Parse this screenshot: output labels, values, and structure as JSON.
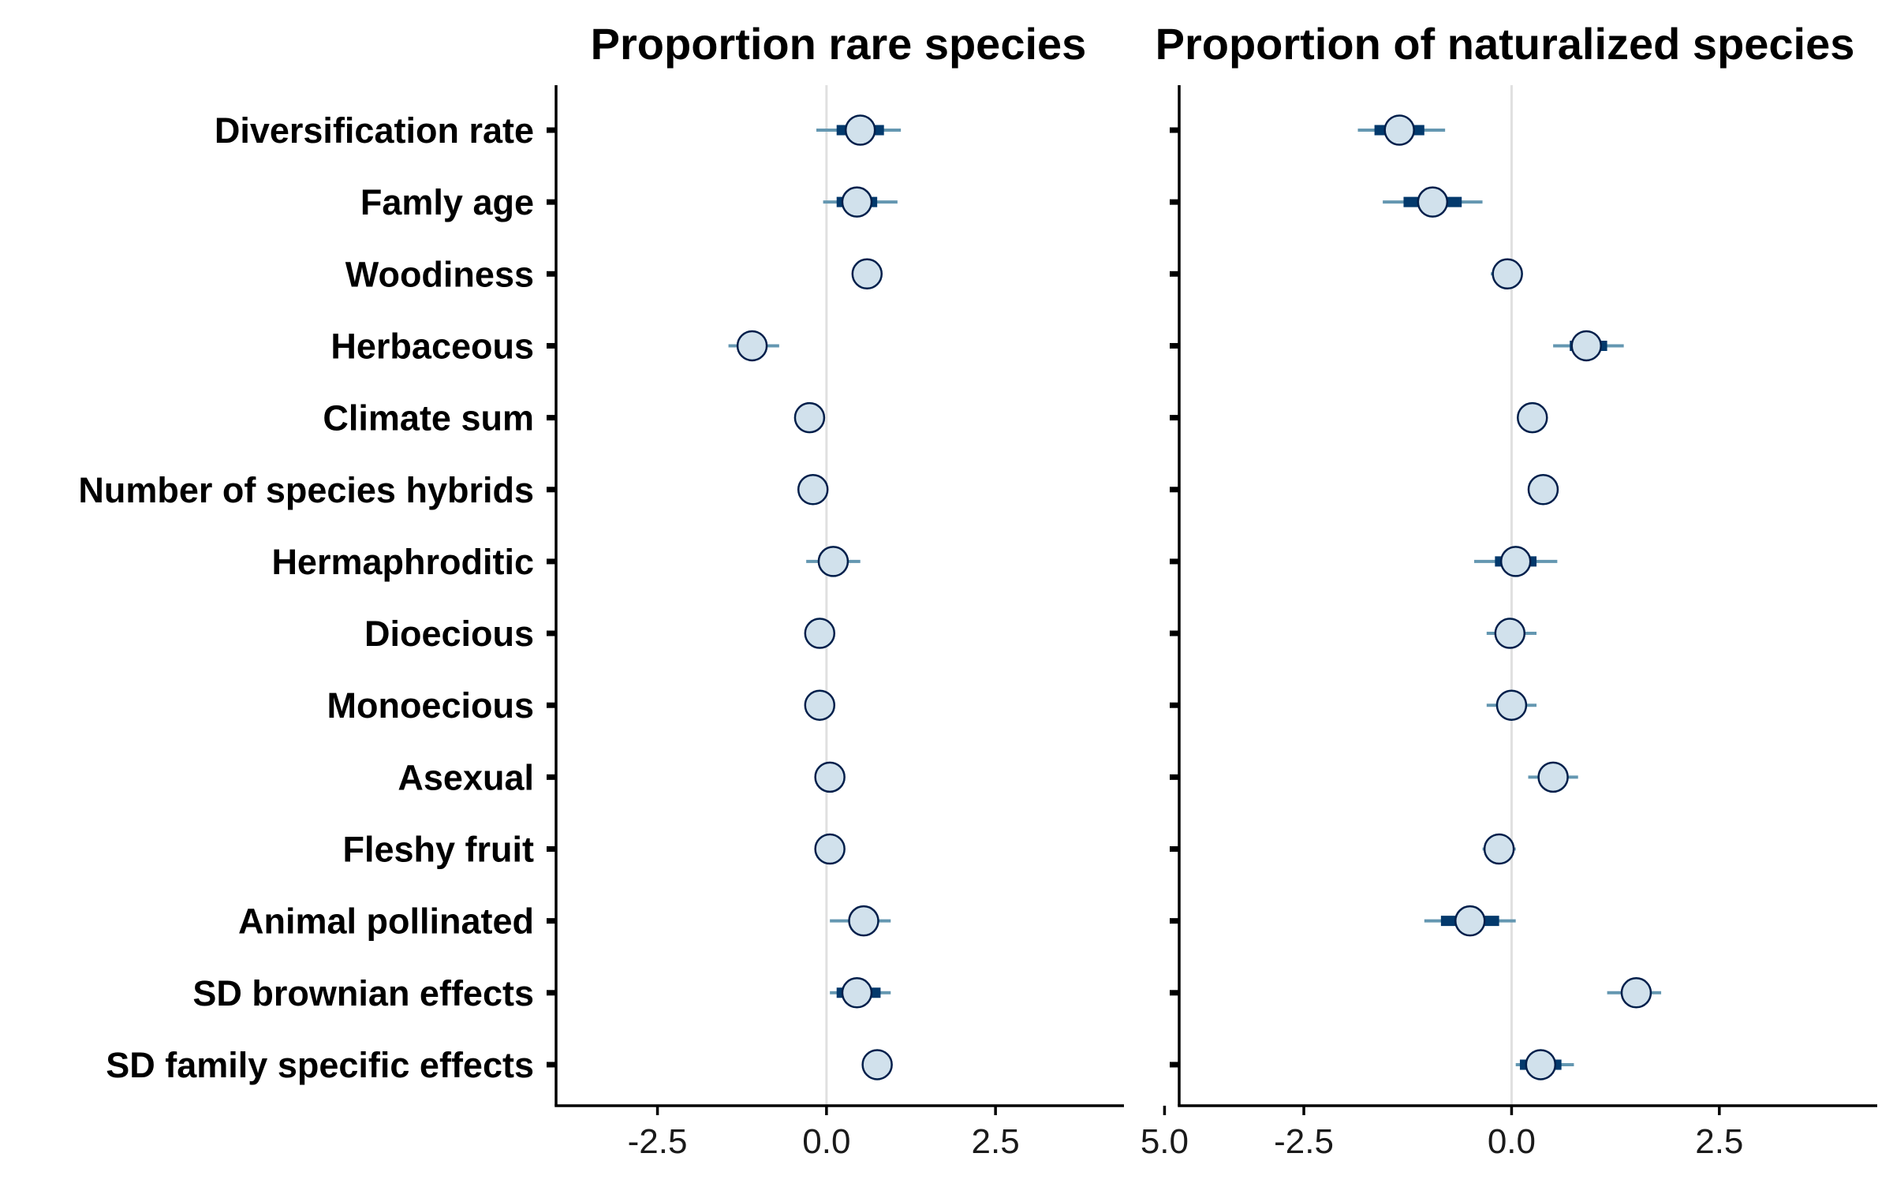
{
  "chart_data": {
    "type": "scatter",
    "subtype": "coefficient-interval-plot",
    "categories": [
      "Diversification rate",
      "Famly age",
      "Woodiness",
      "Herbaceous",
      "Climate sum",
      "Number of species hybrids",
      "Hermaphroditic",
      "Dioecious",
      "Monoecious",
      "Asexual",
      "Fleshy fruit",
      "Animal pollinated",
      "SD brownian effects",
      "SD family specific effects"
    ],
    "xlim": [
      -4.0,
      4.4
    ],
    "xticks": [
      -2.5,
      0.0,
      2.5,
      5.0
    ],
    "xtick_labels": [
      "-2.5",
      "0.0",
      "2.5",
      "5.0"
    ],
    "reference_line": 0,
    "grid": false,
    "colors": {
      "point_fill": "#d1e1ec",
      "point_stroke": "#011f4b",
      "inner_interval": "#03396c",
      "outer_interval": "#6497b1",
      "zero_line": "#e0e0e0",
      "axis": "#000000"
    },
    "panels": [
      {
        "title": "Proportion rare species",
        "estimates": [
          0.5,
          0.45,
          0.6,
          -1.1,
          -0.25,
          -0.2,
          0.1,
          -0.1,
          -0.1,
          0.05,
          0.05,
          0.55,
          0.45,
          0.75
        ],
        "inner_low": [
          0.15,
          0.15,
          0.5,
          -1.2,
          -0.3,
          -0.25,
          0.0,
          -0.15,
          -0.15,
          0.0,
          0.0,
          0.4,
          0.15,
          0.7
        ],
        "inner_high": [
          0.85,
          0.75,
          0.7,
          -0.95,
          -0.2,
          -0.15,
          0.25,
          -0.05,
          -0.05,
          0.1,
          0.1,
          0.7,
          0.8,
          0.8
        ],
        "outer_low": [
          -0.15,
          -0.05,
          0.45,
          -1.45,
          -0.35,
          -0.3,
          -0.3,
          -0.2,
          -0.2,
          -0.05,
          -0.05,
          0.05,
          0.05,
          0.65
        ],
        "outer_high": [
          1.1,
          1.05,
          0.75,
          -0.7,
          -0.15,
          -0.1,
          0.5,
          0.0,
          0.0,
          0.15,
          0.15,
          0.95,
          0.95,
          0.85
        ]
      },
      {
        "title": "Proportion of naturalized species",
        "estimates": [
          -1.35,
          -0.95,
          -0.05,
          0.9,
          0.25,
          0.38,
          0.05,
          -0.02,
          0.0,
          0.5,
          -0.15,
          -0.5,
          1.5,
          0.35
        ],
        "inner_low": [
          -1.65,
          -1.3,
          -0.1,
          0.7,
          0.2,
          0.33,
          -0.2,
          -0.07,
          -0.05,
          0.4,
          -0.2,
          -0.85,
          1.35,
          0.1
        ],
        "inner_high": [
          -1.05,
          -0.6,
          0.0,
          1.15,
          0.3,
          0.43,
          0.3,
          0.03,
          0.05,
          0.6,
          -0.1,
          -0.15,
          1.65,
          0.6
        ],
        "outer_low": [
          -1.85,
          -1.55,
          -0.25,
          0.5,
          0.15,
          0.28,
          -0.45,
          -0.3,
          -0.3,
          0.2,
          -0.35,
          -1.05,
          1.15,
          0.05
        ],
        "outer_high": [
          -0.8,
          -0.35,
          0.1,
          1.35,
          0.35,
          0.48,
          0.55,
          0.3,
          0.3,
          0.8,
          0.05,
          0.05,
          1.8,
          0.75
        ]
      }
    ]
  }
}
